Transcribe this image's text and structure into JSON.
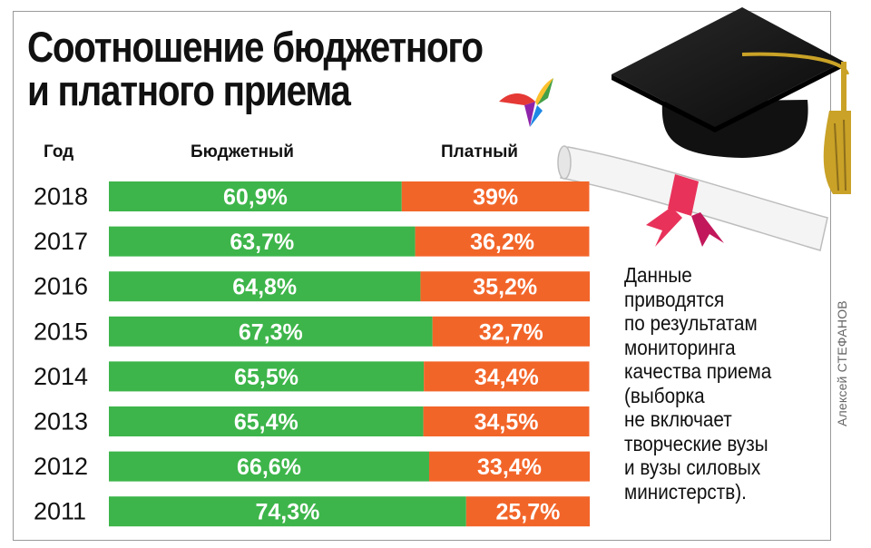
{
  "title": {
    "line1": "Соотношение бюджетного",
    "line2": "и платного приема"
  },
  "headers": {
    "year": "Год",
    "budget": "Бюджетный",
    "paid": "Платный"
  },
  "note": [
    "Данные",
    "приводятся",
    "по результатам",
    "мониторинга",
    "качества приема",
    "(выборка",
    "не включает",
    "творческие вузы",
    "и вузы силовых",
    "министерств)."
  ],
  "credit": "Алексей СТЕФАНОВ",
  "colors": {
    "budget": "#3db54a",
    "paid": "#f26529"
  },
  "chart_data": {
    "type": "bar",
    "stacked": true,
    "orientation": "horizontal",
    "categories": [
      "2018",
      "2017",
      "2016",
      "2015",
      "2014",
      "2013",
      "2012",
      "2011"
    ],
    "series": [
      {
        "name": "Бюджетный",
        "values": [
          60.9,
          63.7,
          64.8,
          67.3,
          65.5,
          65.4,
          66.6,
          74.3
        ],
        "labels": [
          "60,9%",
          "63,7%",
          "64,8%",
          "67,3%",
          "65,5%",
          "65,4%",
          "66,6%",
          "74,3%"
        ]
      },
      {
        "name": "Платный",
        "values": [
          39,
          36.2,
          35.2,
          32.7,
          34.4,
          34.5,
          33.4,
          25.7
        ],
        "labels": [
          "39%",
          "36,2%",
          "35,2%",
          "32,7%",
          "34,4%",
          "34,5%",
          "33,4%",
          "25,7%"
        ]
      }
    ]
  }
}
